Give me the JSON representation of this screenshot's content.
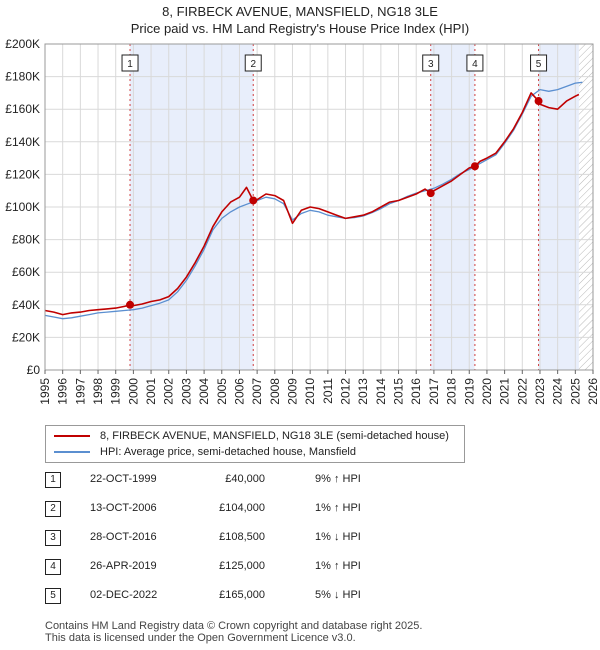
{
  "header": {
    "title": "8, FIRBECK AVENUE, MANSFIELD, NG18 3LE",
    "subtitle": "Price paid vs. HM Land Registry's House Price Index (HPI)"
  },
  "colors": {
    "price": "#c00000",
    "hpi": "#5b8fd0",
    "shade": "#e8eefb"
  },
  "chart_data": {
    "type": "line",
    "title": "Price paid vs. HM Land Registry's House Price Index (HPI)",
    "xlim": [
      1995,
      2026
    ],
    "ylim": [
      0,
      200000
    ],
    "x_ticks": [
      "1995",
      "1996",
      "1997",
      "1998",
      "1999",
      "2000",
      "2001",
      "2002",
      "2003",
      "2004",
      "2005",
      "2006",
      "2007",
      "2008",
      "2009",
      "2010",
      "2011",
      "2012",
      "2013",
      "2014",
      "2015",
      "2016",
      "2017",
      "2018",
      "2019",
      "2020",
      "2021",
      "2022",
      "2023",
      "2024",
      "2025",
      "2026"
    ],
    "y_ticks": [
      0,
      20000,
      40000,
      60000,
      80000,
      100000,
      120000,
      140000,
      160000,
      180000,
      200000
    ],
    "y_tick_labels": [
      "£0",
      "£20K",
      "£40K",
      "£60K",
      "£80K",
      "£100K",
      "£120K",
      "£140K",
      "£160K",
      "£180K",
      "£200K"
    ],
    "forecast_from": 2025.2,
    "shaded_spans": [
      [
        1999.8,
        2006.8
      ],
      [
        2016.8,
        2019.3
      ],
      [
        2022.9,
        2025.2
      ]
    ],
    "series": [
      {
        "name": "8, FIRBECK AVENUE, MANSFIELD, NG18 3LE (semi-detached house)",
        "color": "#c00000",
        "points": [
          [
            1995,
            36500
          ],
          [
            1995.5,
            35500
          ],
          [
            1996,
            34000
          ],
          [
            1996.5,
            35000
          ],
          [
            1997,
            35500
          ],
          [
            1997.5,
            36500
          ],
          [
            1998,
            37000
          ],
          [
            1998.5,
            37500
          ],
          [
            1999,
            38000
          ],
          [
            1999.5,
            39000
          ],
          [
            1999.81,
            40000
          ],
          [
            2000,
            39500
          ],
          [
            2000.5,
            40500
          ],
          [
            2001,
            42000
          ],
          [
            2001.5,
            43000
          ],
          [
            2002,
            45000
          ],
          [
            2002.5,
            50000
          ],
          [
            2003,
            57000
          ],
          [
            2003.5,
            66000
          ],
          [
            2004,
            76000
          ],
          [
            2004.5,
            88000
          ],
          [
            2005,
            97000
          ],
          [
            2005.5,
            103000
          ],
          [
            2006,
            106000
          ],
          [
            2006.4,
            112000
          ],
          [
            2006.78,
            104000
          ],
          [
            2007,
            104500
          ],
          [
            2007.5,
            108000
          ],
          [
            2008,
            107000
          ],
          [
            2008.5,
            104000
          ],
          [
            2009,
            90000
          ],
          [
            2009.5,
            98000
          ],
          [
            2010,
            100000
          ],
          [
            2010.5,
            99000
          ],
          [
            2011,
            97000
          ],
          [
            2011.5,
            95000
          ],
          [
            2012,
            93000
          ],
          [
            2012.5,
            94000
          ],
          [
            2013,
            95000
          ],
          [
            2013.5,
            97000
          ],
          [
            2014,
            100000
          ],
          [
            2014.5,
            103000
          ],
          [
            2015,
            104000
          ],
          [
            2015.5,
            106000
          ],
          [
            2016,
            108000
          ],
          [
            2016.5,
            111000
          ],
          [
            2016.82,
            108500
          ],
          [
            2017,
            110000
          ],
          [
            2017.5,
            113000
          ],
          [
            2018,
            116000
          ],
          [
            2018.5,
            120000
          ],
          [
            2019,
            124000
          ],
          [
            2019.32,
            125000
          ],
          [
            2019.6,
            128000
          ],
          [
            2020,
            130000
          ],
          [
            2020.5,
            133000
          ],
          [
            2021,
            140000
          ],
          [
            2021.5,
            148000
          ],
          [
            2022,
            158000
          ],
          [
            2022.5,
            170000
          ],
          [
            2022.92,
            165000
          ],
          [
            2023,
            163000
          ],
          [
            2023.5,
            161000
          ],
          [
            2024,
            160000
          ],
          [
            2024.5,
            165000
          ],
          [
            2025,
            168000
          ],
          [
            2025.2,
            169000
          ]
        ]
      },
      {
        "name": "HPI: Average price, semi-detached house, Mansfield",
        "color": "#5b8fd0",
        "points": [
          [
            1995,
            33500
          ],
          [
            1995.5,
            32500
          ],
          [
            1996,
            31500
          ],
          [
            1996.5,
            32000
          ],
          [
            1997,
            33000
          ],
          [
            1997.5,
            34000
          ],
          [
            1998,
            35000
          ],
          [
            1998.5,
            35500
          ],
          [
            1999,
            36000
          ],
          [
            1999.5,
            36500
          ],
          [
            2000,
            37000
          ],
          [
            2000.5,
            38000
          ],
          [
            2001,
            39500
          ],
          [
            2001.5,
            41000
          ],
          [
            2002,
            43000
          ],
          [
            2002.5,
            48000
          ],
          [
            2003,
            55000
          ],
          [
            2003.5,
            64000
          ],
          [
            2004,
            74000
          ],
          [
            2004.5,
            86000
          ],
          [
            2005,
            93000
          ],
          [
            2005.5,
            97000
          ],
          [
            2006,
            100000
          ],
          [
            2006.5,
            102000
          ],
          [
            2007,
            104000
          ],
          [
            2007.5,
            106000
          ],
          [
            2008,
            105000
          ],
          [
            2008.5,
            102000
          ],
          [
            2009,
            92000
          ],
          [
            2009.5,
            96000
          ],
          [
            2010,
            98000
          ],
          [
            2010.5,
            97000
          ],
          [
            2011,
            95000
          ],
          [
            2011.5,
            94000
          ],
          [
            2012,
            93000
          ],
          [
            2012.5,
            93500
          ],
          [
            2013,
            94500
          ],
          [
            2013.5,
            96500
          ],
          [
            2014,
            99000
          ],
          [
            2014.5,
            102000
          ],
          [
            2015,
            104000
          ],
          [
            2015.5,
            106500
          ],
          [
            2016,
            108500
          ],
          [
            2016.5,
            110000
          ],
          [
            2017,
            111500
          ],
          [
            2017.5,
            114000
          ],
          [
            2018,
            117000
          ],
          [
            2018.5,
            120500
          ],
          [
            2019,
            123000
          ],
          [
            2019.5,
            126000
          ],
          [
            2020,
            129000
          ],
          [
            2020.5,
            132000
          ],
          [
            2021,
            139000
          ],
          [
            2021.5,
            147000
          ],
          [
            2022,
            157000
          ],
          [
            2022.5,
            168000
          ],
          [
            2023,
            172000
          ],
          [
            2023.5,
            171000
          ],
          [
            2024,
            172000
          ],
          [
            2024.5,
            174000
          ],
          [
            2025,
            176000
          ],
          [
            2025.4,
            176500
          ]
        ]
      }
    ],
    "sales": [
      {
        "label": "1",
        "x": 1999.81,
        "y": 40000
      },
      {
        "label": "2",
        "x": 2006.78,
        "y": 104000
      },
      {
        "label": "3",
        "x": 2016.82,
        "y": 108500
      },
      {
        "label": "4",
        "x": 2019.32,
        "y": 125000
      },
      {
        "label": "5",
        "x": 2022.92,
        "y": 165000
      }
    ]
  },
  "legend": {
    "price_label": "8, FIRBECK AVENUE, MANSFIELD, NG18 3LE (semi-detached house)",
    "hpi_label": "HPI: Average price, semi-detached house, Mansfield"
  },
  "transactions": [
    {
      "num": "1",
      "date": "22-OCT-1999",
      "price": "£40,000",
      "hpi": "9% ↑ HPI"
    },
    {
      "num": "2",
      "date": "13-OCT-2006",
      "price": "£104,000",
      "hpi": "1% ↑ HPI"
    },
    {
      "num": "3",
      "date": "28-OCT-2016",
      "price": "£108,500",
      "hpi": "1% ↓ HPI"
    },
    {
      "num": "4",
      "date": "26-APR-2019",
      "price": "£125,000",
      "hpi": "1% ↑ HPI"
    },
    {
      "num": "5",
      "date": "02-DEC-2022",
      "price": "£165,000",
      "hpi": "5% ↓ HPI"
    }
  ],
  "footer": {
    "line1": "Contains HM Land Registry data © Crown copyright and database right 2025.",
    "line2": "This data is licensed under the Open Government Licence v3.0."
  }
}
